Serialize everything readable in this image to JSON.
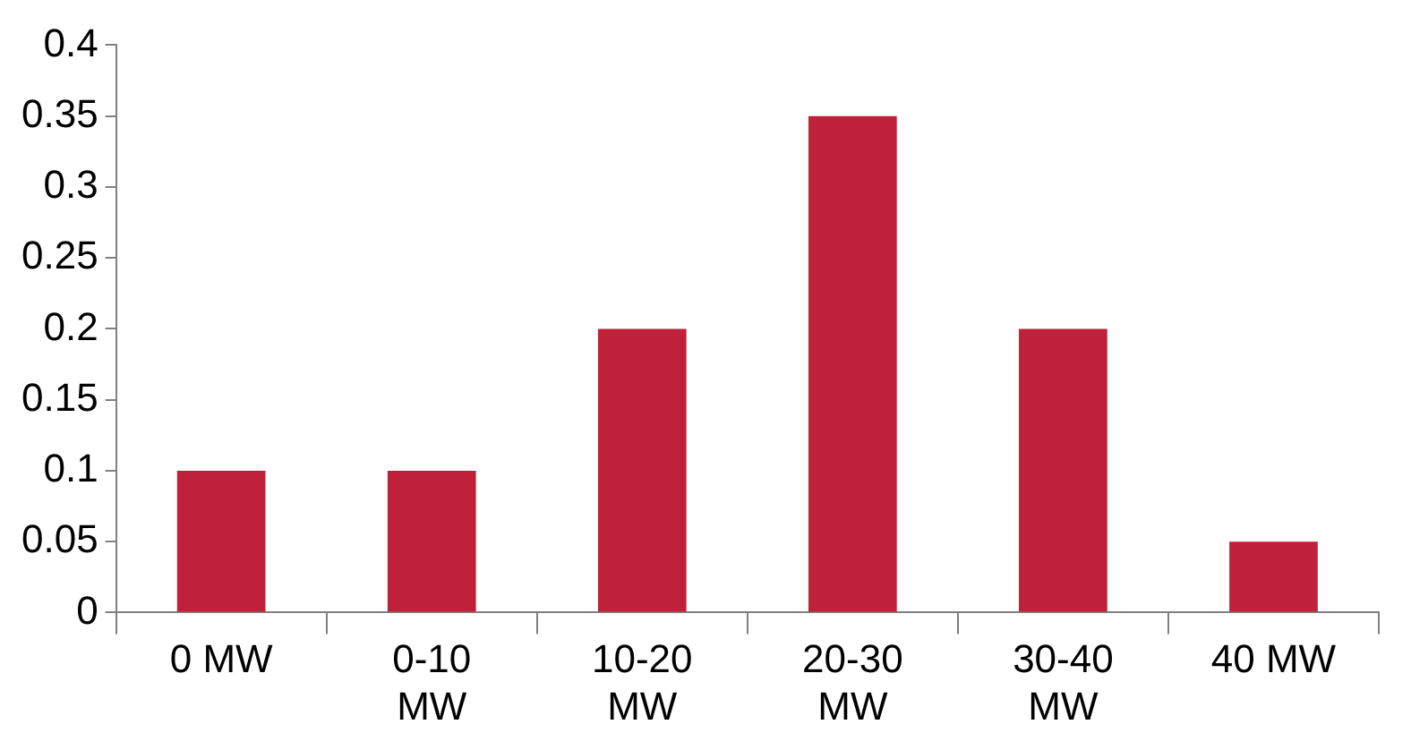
{
  "chart_data": {
    "type": "bar",
    "categories": [
      "0 MW",
      "0-10 MW",
      "10-20 MW",
      "20-30 MW",
      "30-40 MW",
      "40 MW"
    ],
    "values": [
      0.1,
      0.1,
      0.2,
      0.35,
      0.2,
      0.05
    ],
    "color": "#c0213a",
    "ylim": [
      0,
      0.4
    ],
    "yticks": [
      0,
      0.05,
      0.1,
      0.15,
      0.2,
      0.25,
      0.3,
      0.35,
      0.4
    ]
  }
}
